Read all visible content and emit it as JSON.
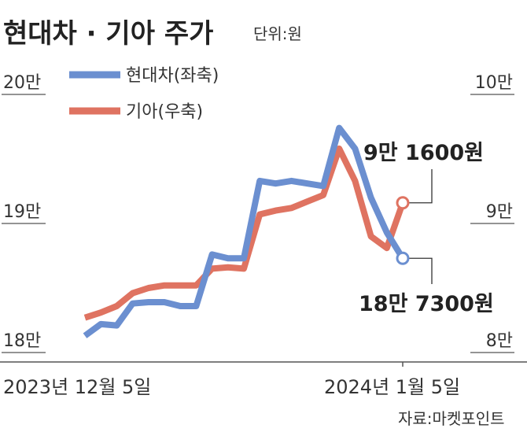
{
  "chart_data": {
    "type": "line",
    "title": "현대차 · 기아 주가",
    "unit_label": "단위:원",
    "source": "자료:마켓포인트",
    "x_labels": [
      "2023년 12월 5일",
      "2024년 1월 5일"
    ],
    "left_axis": {
      "ticks": [
        "20만",
        "19만",
        "18만"
      ],
      "values": [
        200000,
        190000,
        180000
      ],
      "ylim": [
        180000,
        200000
      ]
    },
    "right_axis": {
      "ticks": [
        "10만",
        "9만",
        "8만"
      ],
      "values": [
        100000,
        90000,
        80000
      ],
      "ylim": [
        80000,
        100000
      ]
    },
    "series": [
      {
        "name": "현대차(좌축)",
        "axis": "left",
        "color": "#6b8fd0",
        "values": [
          181300,
          182200,
          182100,
          183800,
          183900,
          183900,
          183600,
          183600,
          187600,
          187300,
          187300,
          193300,
          193100,
          193300,
          193100,
          192900,
          197400,
          195800,
          192000,
          189300,
          187300
        ],
        "end_label": "18만 7300원"
      },
      {
        "name": "기아(우축)",
        "axis": "right",
        "color": "#df7361",
        "values": [
          82700,
          83100,
          83600,
          84600,
          85000,
          85200,
          85200,
          85200,
          86500,
          86600,
          86500,
          90700,
          91000,
          91200,
          91700,
          92200,
          95800,
          93300,
          89000,
          88100,
          91600
        ],
        "end_label": "9만 1600원"
      }
    ]
  }
}
